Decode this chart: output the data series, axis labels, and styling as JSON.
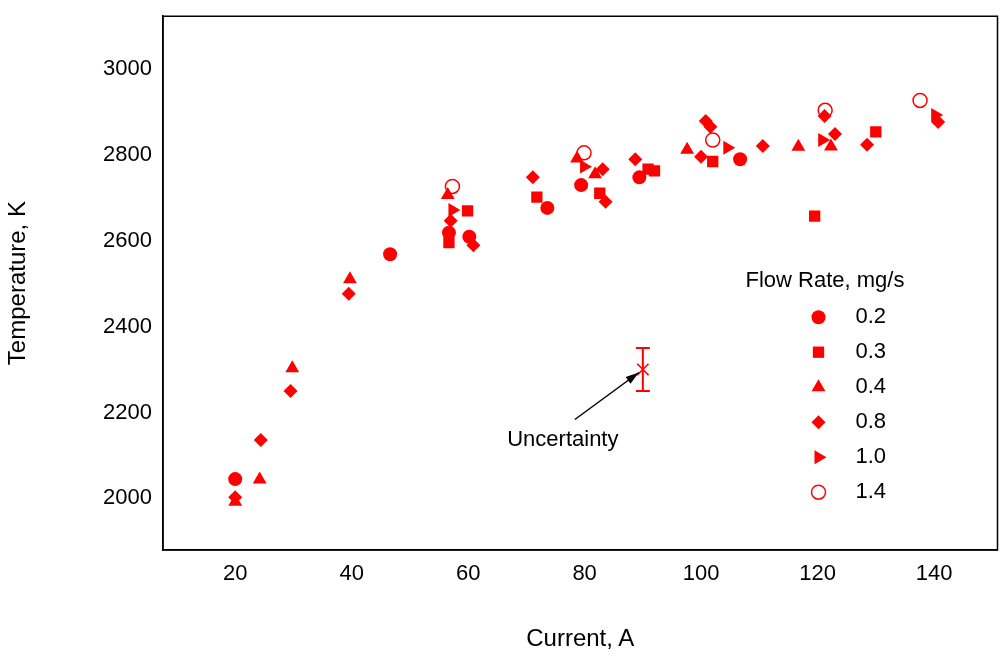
{
  "chart_data": {
    "type": "scatter",
    "xlabel": "Current, A",
    "ylabel": "Temperature, K",
    "legend_title": "Flow Rate, mg/s",
    "legend": "right",
    "grid": false,
    "xlim": [
      7.6,
      150.9
    ],
    "ylim": [
      1880,
      3122
    ],
    "xticks": [
      20,
      40,
      60,
      80,
      100,
      120,
      140
    ],
    "yticks": [
      2000,
      2200,
      2400,
      2600,
      2800,
      3000
    ],
    "annotations": [
      {
        "text": "Uncertainty",
        "x": 90,
        "y": 2300
      }
    ],
    "series": [
      {
        "name": "0.2",
        "color": "#ff0000",
        "marker": "circle",
        "x": [
          20,
          46.6,
          56.7,
          60.2,
          73.6,
          79.4,
          89.4,
          106.7
        ],
        "values": [
          2045,
          2568,
          2618,
          2609,
          2676,
          2729,
          2747,
          2789
        ]
      },
      {
        "name": "0.3",
        "color": "#ff0000",
        "marker": "square",
        "x": [
          56.7,
          59.9,
          71.8,
          82.6,
          90.9,
          92.0,
          102.0,
          119.5,
          130.0
        ],
        "values": [
          2595,
          2669,
          2701,
          2710,
          2766,
          2762,
          2784,
          2657,
          2853
        ]
      },
      {
        "name": "0.4",
        "color": "#ff0000",
        "marker": "triangle",
        "x": [
          20,
          24.2,
          29.8,
          39.7,
          56.5,
          78.7,
          81.8,
          97.6,
          116.7,
          122.3
        ],
        "values": [
          1992,
          2044,
          2303,
          2510,
          2706,
          2791,
          2754,
          2811,
          2818,
          2819
        ]
      },
      {
        "name": "0.8",
        "color": "#ff0000",
        "marker": "diamond",
        "x": [
          20,
          24.4,
          29.5,
          39.5,
          57.0,
          60.9,
          71.1,
          83.1,
          83.6,
          88.7,
          100.0,
          100.8,
          101.6,
          110.6,
          121.2,
          123.0,
          128.5,
          140.7
        ],
        "values": [
          2003,
          2136,
          2250,
          2476,
          2646,
          2589,
          2747,
          2766,
          2690,
          2789,
          2795,
          2878,
          2865,
          2820,
          2890,
          2848,
          2823,
          2876
        ]
      },
      {
        "name": "1.0",
        "color": "#ff0000",
        "x": [
          57.3,
          79.9,
          104.5,
          120.8,
          140.2
        ],
        "values": [
          2671,
          2772,
          2816,
          2834,
          2892
        ]
      },
      {
        "name": "1.4",
        "color": "#ff0000",
        "marker": "open-circle",
        "x": [
          57.3,
          79.9,
          102.0,
          121.3,
          137.6
        ],
        "values": [
          2726,
          2804,
          2834,
          2903,
          2926
        ]
      },
      {
        "color": "#ff0000",
        "marker": "cross",
        "x": [
          90
        ],
        "values": [
          2300
        ],
        "errors": [
          50
        ]
      }
    ]
  }
}
